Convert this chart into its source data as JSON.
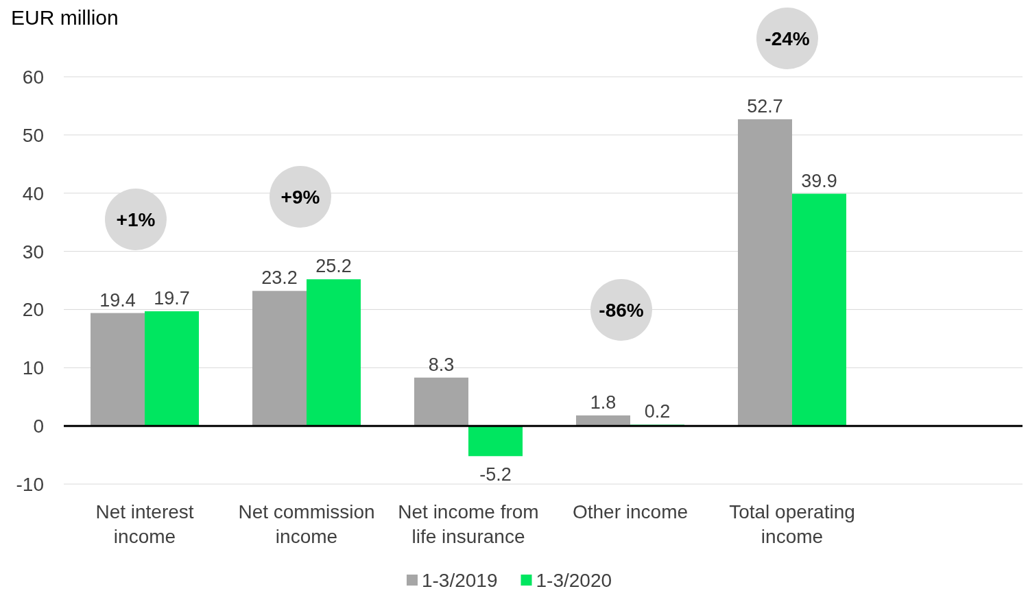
{
  "chart_data": {
    "type": "bar",
    "title": "EUR million",
    "categories": [
      "Net interest income",
      "Net commission income",
      "Net income from life insurance",
      "Other income",
      "Total operating income"
    ],
    "series": [
      {
        "name": "1-3/2019",
        "color": "#a6a6a6",
        "values": [
          19.4,
          23.2,
          8.3,
          1.8,
          52.7
        ]
      },
      {
        "name": "1-3/2020",
        "color": "#00e660",
        "values": [
          19.7,
          25.2,
          -5.2,
          0.2,
          39.9
        ]
      }
    ],
    "ylim": [
      -10,
      60
    ],
    "yticks": [
      -10,
      0,
      10,
      20,
      30,
      40,
      50,
      60
    ],
    "grid": "y",
    "data_labels": true,
    "legend": "bottom",
    "annotations": [
      "+1%",
      "+9%",
      "-86%",
      "-24%"
    ]
  }
}
